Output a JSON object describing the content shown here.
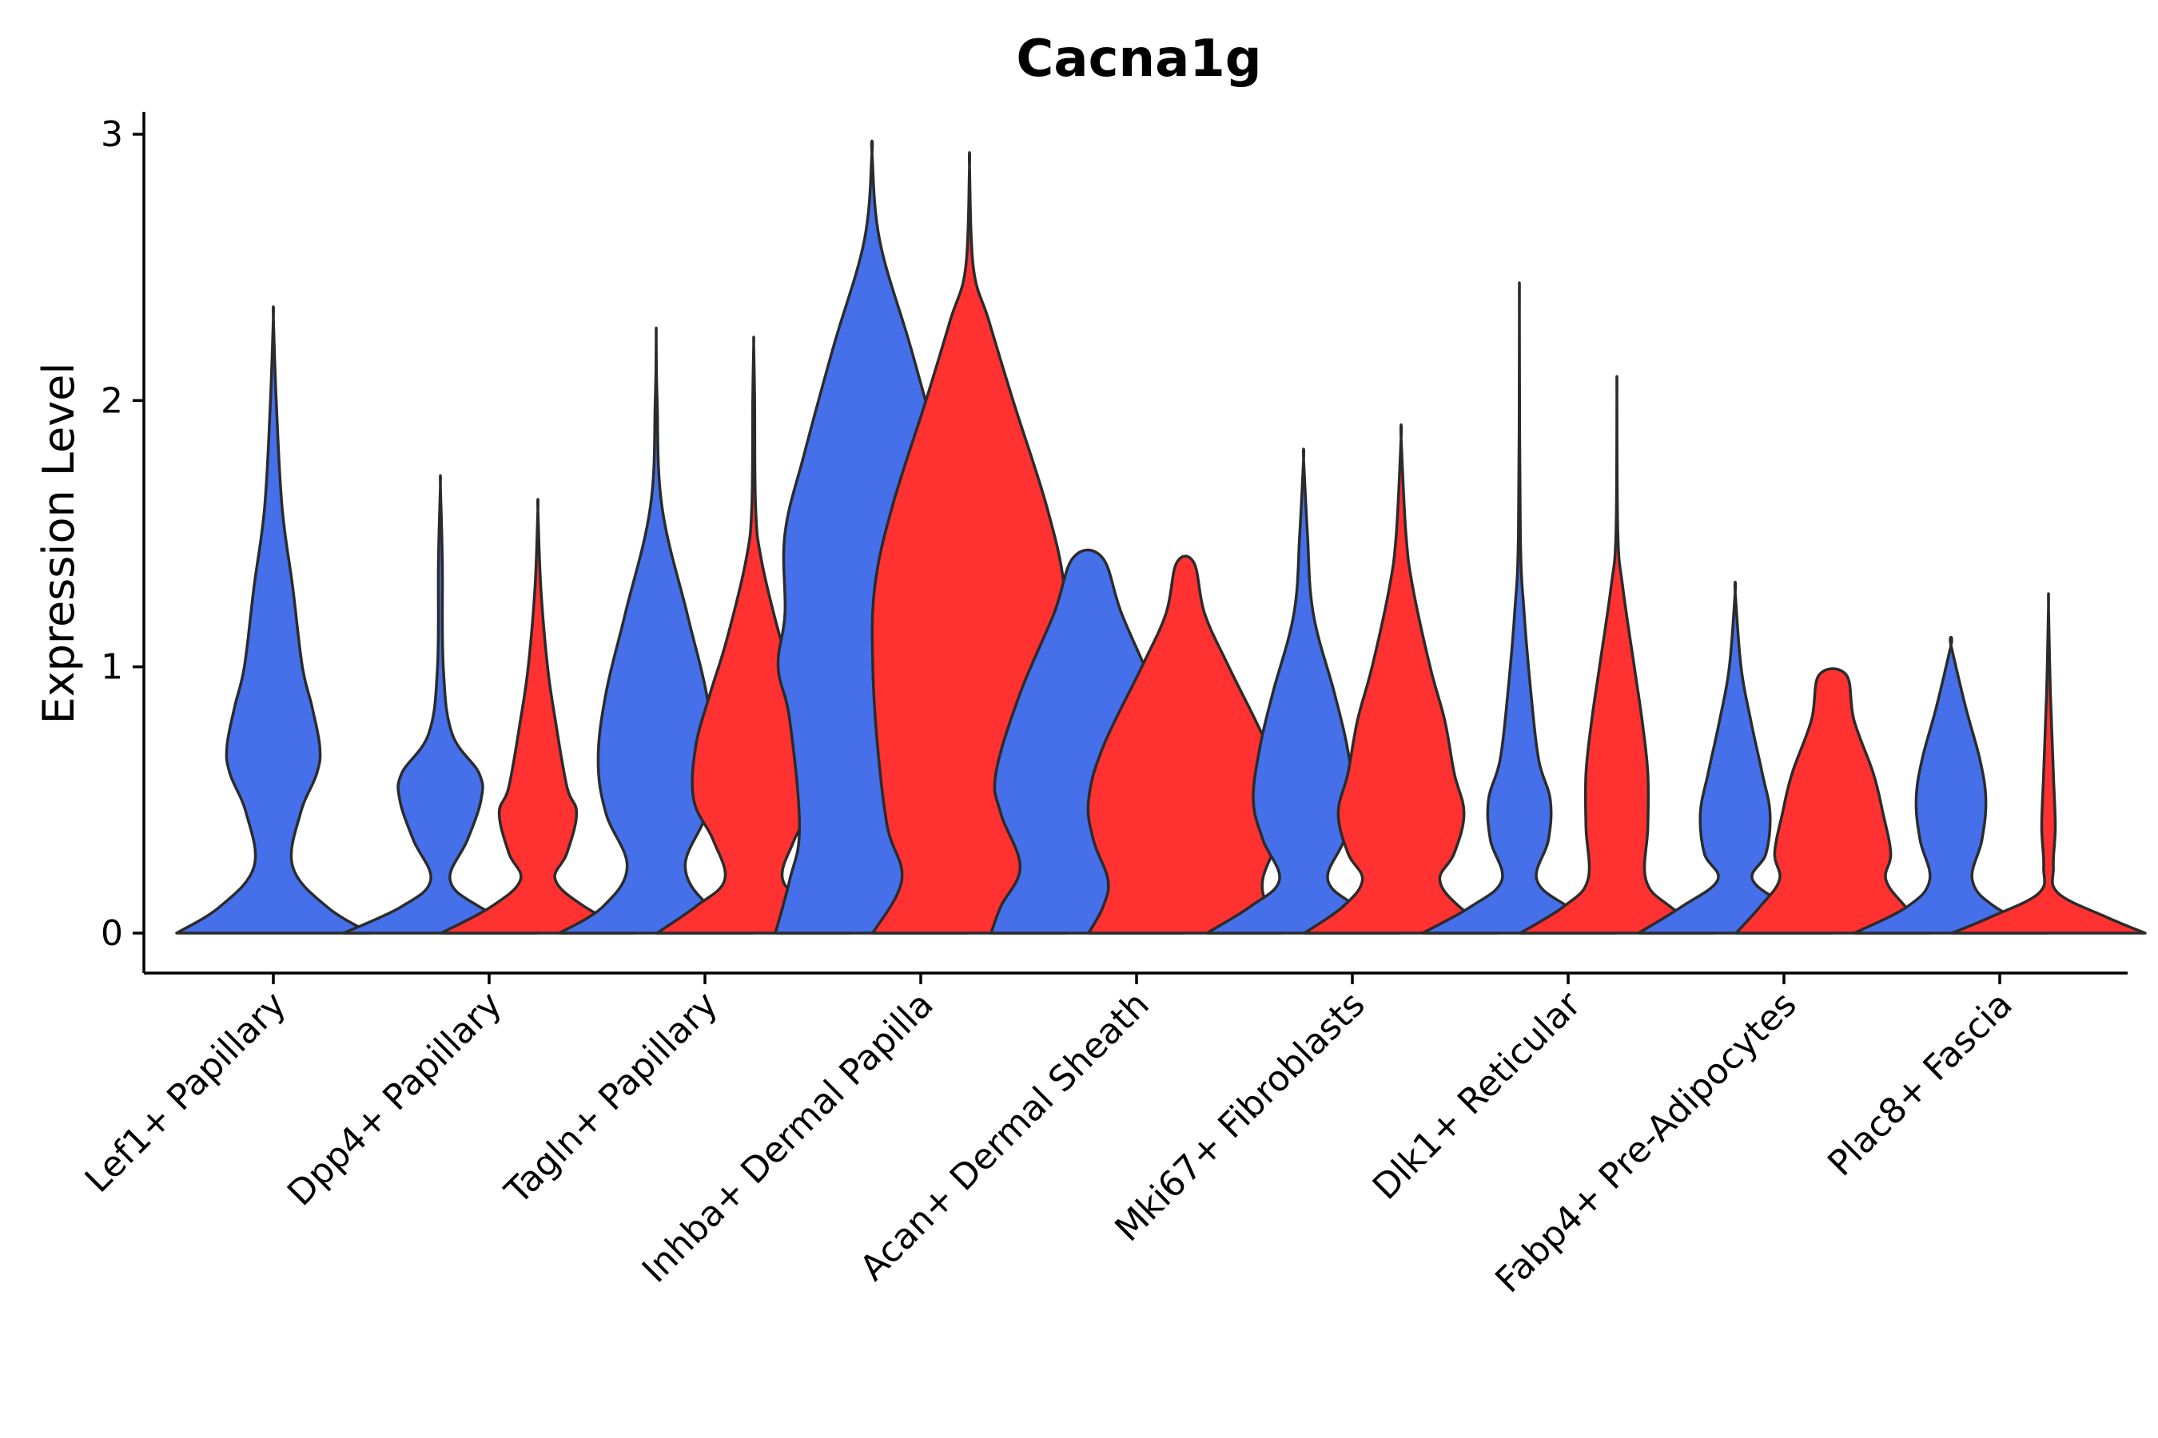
{
  "chart_data": {
    "type": "violin",
    "title": "Cacna1g",
    "xlabel": "",
    "ylabel": "Expression Level",
    "ylim": [
      -0.15,
      3.08
    ],
    "yticks": [
      0,
      1,
      2,
      3
    ],
    "colors": {
      "group_a": "#4570EA",
      "group_b": "#FF3131"
    },
    "categories": [
      "Lef1+ Papillary",
      "Dpp4+ Papillary",
      "Tagln+ Papillary",
      "Inhba+ Dermal Papilla",
      "Acan+ Dermal Sheath",
      "Mki67+ Fibroblasts",
      "Dlk1+ Reticular",
      "Fabp4+ Pre-Adipocytes",
      "Plac8+ Fascia"
    ],
    "violins": [
      {
        "category": "Lef1+ Papillary",
        "group": "a",
        "max": 2.31,
        "profile": [
          [
            0,
            1.0
          ],
          [
            0.1,
            0.55
          ],
          [
            0.25,
            0.2
          ],
          [
            0.45,
            0.28
          ],
          [
            0.6,
            0.45
          ],
          [
            0.7,
            0.48
          ],
          [
            0.85,
            0.4
          ],
          [
            1.0,
            0.3
          ],
          [
            1.3,
            0.2
          ],
          [
            1.6,
            0.09
          ],
          [
            2.0,
            0.03
          ],
          [
            2.31,
            0
          ]
        ]
      },
      {
        "category": "Dpp4+ Papillary",
        "group": "a",
        "max": 1.68,
        "profile": [
          [
            0,
            1.0
          ],
          [
            0.1,
            0.4
          ],
          [
            0.2,
            0.1
          ],
          [
            0.35,
            0.28
          ],
          [
            0.5,
            0.42
          ],
          [
            0.6,
            0.4
          ],
          [
            0.75,
            0.12
          ],
          [
            1.0,
            0.03
          ],
          [
            1.4,
            0.02
          ],
          [
            1.68,
            0
          ]
        ]
      },
      {
        "category": "Dpp4+ Papillary",
        "group": "b",
        "max": 1.59,
        "profile": [
          [
            0,
            1.0
          ],
          [
            0.1,
            0.48
          ],
          [
            0.2,
            0.18
          ],
          [
            0.3,
            0.3
          ],
          [
            0.45,
            0.4
          ],
          [
            0.55,
            0.3
          ],
          [
            0.8,
            0.18
          ],
          [
            1.0,
            0.1
          ],
          [
            1.3,
            0.03
          ],
          [
            1.59,
            0
          ]
        ]
      },
      {
        "category": "Tagln+ Papillary",
        "group": "a",
        "max": 2.24,
        "profile": [
          [
            0,
            1.0
          ],
          [
            0.1,
            0.55
          ],
          [
            0.25,
            0.3
          ],
          [
            0.45,
            0.52
          ],
          [
            0.65,
            0.6
          ],
          [
            0.9,
            0.52
          ],
          [
            1.2,
            0.32
          ],
          [
            1.6,
            0.06
          ],
          [
            2.0,
            0.01
          ],
          [
            2.24,
            0
          ]
        ]
      },
      {
        "category": "Tagln+ Papillary",
        "group": "b",
        "max": 2.21,
        "profile": [
          [
            0,
            1.0
          ],
          [
            0.1,
            0.6
          ],
          [
            0.2,
            0.3
          ],
          [
            0.35,
            0.42
          ],
          [
            0.5,
            0.62
          ],
          [
            0.7,
            0.6
          ],
          [
            0.9,
            0.45
          ],
          [
            1.1,
            0.28
          ],
          [
            1.4,
            0.08
          ],
          [
            1.6,
            0.02
          ],
          [
            2.0,
            0.01
          ],
          [
            2.21,
            0
          ]
        ]
      },
      {
        "category": "Inhba+ Dermal Papilla",
        "group": "a",
        "max": 2.93,
        "profile": [
          [
            0,
            1.0
          ],
          [
            0.2,
            0.85
          ],
          [
            0.4,
            0.75
          ],
          [
            0.8,
            0.85
          ],
          [
            1.0,
            0.97
          ],
          [
            1.2,
            0.9
          ],
          [
            1.5,
            0.9
          ],
          [
            1.8,
            0.7
          ],
          [
            2.2,
            0.4
          ],
          [
            2.6,
            0.08
          ],
          [
            2.93,
            0
          ]
        ]
      },
      {
        "category": "Inhba+ Dermal Papilla",
        "group": "b",
        "max": 2.88,
        "profile": [
          [
            0,
            1.0
          ],
          [
            0.2,
            0.7
          ],
          [
            0.4,
            0.85
          ],
          [
            0.7,
            0.95
          ],
          [
            1.0,
            1.0
          ],
          [
            1.3,
            0.98
          ],
          [
            1.6,
            0.8
          ],
          [
            2.0,
            0.45
          ],
          [
            2.3,
            0.2
          ],
          [
            2.5,
            0.04
          ],
          [
            2.88,
            0
          ]
        ]
      },
      {
        "category": "Acan+ Dermal Sheath",
        "group": "a",
        "max": 1.41,
        "profile": [
          [
            0,
            1.0
          ],
          [
            0.1,
            0.9
          ],
          [
            0.25,
            0.7
          ],
          [
            0.45,
            0.9
          ],
          [
            0.6,
            0.95
          ],
          [
            0.9,
            0.7
          ],
          [
            1.2,
            0.35
          ],
          [
            1.41,
            0.15
          ]
        ]
      },
      {
        "category": "Acan+ Dermal Sheath",
        "group": "b",
        "max": 1.39,
        "profile": [
          [
            0,
            1.0
          ],
          [
            0.1,
            0.85
          ],
          [
            0.2,
            0.8
          ],
          [
            0.35,
            0.95
          ],
          [
            0.5,
            1.0
          ],
          [
            0.7,
            0.85
          ],
          [
            1.0,
            0.45
          ],
          [
            1.2,
            0.2
          ],
          [
            1.39,
            0.09
          ]
        ]
      },
      {
        "category": "Mki67+ Fibroblasts",
        "group": "a",
        "max": 1.78,
        "profile": [
          [
            0,
            1.0
          ],
          [
            0.1,
            0.55
          ],
          [
            0.2,
            0.25
          ],
          [
            0.35,
            0.42
          ],
          [
            0.5,
            0.52
          ],
          [
            0.7,
            0.45
          ],
          [
            0.9,
            0.32
          ],
          [
            1.2,
            0.1
          ],
          [
            1.5,
            0.04
          ],
          [
            1.78,
            0
          ]
        ]
      },
      {
        "category": "Mki67+ Fibroblasts",
        "group": "b",
        "max": 1.86,
        "profile": [
          [
            0,
            1.0
          ],
          [
            0.1,
            0.6
          ],
          [
            0.2,
            0.4
          ],
          [
            0.3,
            0.55
          ],
          [
            0.45,
            0.65
          ],
          [
            0.6,
            0.55
          ],
          [
            0.8,
            0.45
          ],
          [
            1.0,
            0.3
          ],
          [
            1.3,
            0.12
          ],
          [
            1.5,
            0.05
          ],
          [
            1.86,
            0
          ]
        ]
      },
      {
        "category": "Dlk1+ Reticular",
        "group": "a",
        "max": 2.33,
        "profile": [
          [
            0,
            1.0
          ],
          [
            0.1,
            0.5
          ],
          [
            0.2,
            0.18
          ],
          [
            0.35,
            0.3
          ],
          [
            0.5,
            0.32
          ],
          [
            0.65,
            0.2
          ],
          [
            0.9,
            0.12
          ],
          [
            1.2,
            0.05
          ],
          [
            1.5,
            0.01
          ],
          [
            2.33,
            0
          ]
        ]
      },
      {
        "category": "Dlk1+ Reticular",
        "group": "b",
        "max": 2.02,
        "profile": [
          [
            0,
            1.0
          ],
          [
            0.1,
            0.55
          ],
          [
            0.2,
            0.3
          ],
          [
            0.4,
            0.32
          ],
          [
            0.6,
            0.32
          ],
          [
            0.8,
            0.26
          ],
          [
            1.0,
            0.18
          ],
          [
            1.3,
            0.06
          ],
          [
            1.5,
            0.01
          ],
          [
            2.02,
            0
          ]
        ]
      },
      {
        "category": "Fabp4+ Pre-Adipocytes",
        "group": "a",
        "max": 1.28,
        "profile": [
          [
            0,
            1.0
          ],
          [
            0.1,
            0.55
          ],
          [
            0.2,
            0.18
          ],
          [
            0.3,
            0.32
          ],
          [
            0.45,
            0.36
          ],
          [
            0.6,
            0.28
          ],
          [
            0.8,
            0.16
          ],
          [
            1.0,
            0.06
          ],
          [
            1.28,
            0
          ]
        ]
      },
      {
        "category": "Fabp4+ Pre-Adipocytes",
        "group": "b",
        "max": 0.98,
        "profile": [
          [
            0,
            1.0
          ],
          [
            0.1,
            0.75
          ],
          [
            0.2,
            0.55
          ],
          [
            0.3,
            0.6
          ],
          [
            0.45,
            0.52
          ],
          [
            0.6,
            0.42
          ],
          [
            0.8,
            0.22
          ],
          [
            0.97,
            0.14
          ]
        ]
      },
      {
        "category": "Plac8+ Fascia",
        "group": "a",
        "max": 1.08,
        "profile": [
          [
            0,
            1.0
          ],
          [
            0.1,
            0.45
          ],
          [
            0.2,
            0.22
          ],
          [
            0.35,
            0.32
          ],
          [
            0.5,
            0.36
          ],
          [
            0.65,
            0.3
          ],
          [
            0.85,
            0.15
          ],
          [
            1.08,
            0
          ]
        ]
      },
      {
        "category": "Plac8+ Fascia",
        "group": "b",
        "max": 1.23,
        "profile": [
          [
            0,
            1.0
          ],
          [
            0.06,
            0.6
          ],
          [
            0.15,
            0.1
          ],
          [
            0.25,
            0.05
          ],
          [
            0.4,
            0.07
          ],
          [
            0.6,
            0.05
          ],
          [
            0.9,
            0.02
          ],
          [
            1.23,
            0
          ]
        ]
      }
    ]
  }
}
